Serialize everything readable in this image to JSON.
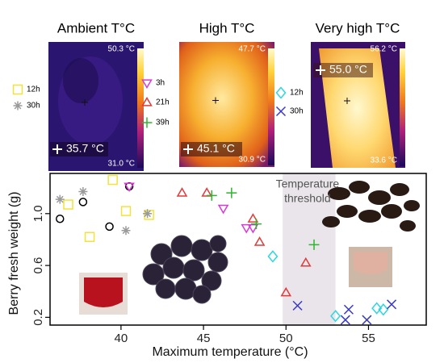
{
  "panels": [
    {
      "title": "Ambient T°C",
      "max": "50.3 °C",
      "min": "31.0 °C",
      "spot": "35.7 °C"
    },
    {
      "title": "High T°C",
      "max": "47.7 °C",
      "min": "30.9 °C",
      "spot": "45.1 °C"
    },
    {
      "title": "Very high T°C",
      "max": "56.2 °C",
      "min": "33.6 °C",
      "spot": "55.0 °C"
    }
  ],
  "chart_data": {
    "type": "scatter",
    "xlabel": "Maximum temperature (°C)",
    "ylabel": "Berry fresh weight (g)",
    "annotation": [
      "Temperature",
      "threshold"
    ],
    "threshold": [
      49.8,
      53
    ],
    "xlim": [
      35.7,
      58.5
    ],
    "ylim": [
      0.14,
      1.31
    ],
    "xticks": [
      40,
      45,
      50,
      55
    ],
    "yticks": [
      0.2,
      0.6,
      {
        "value": 1,
        "label": "1.0"
      }
    ],
    "series": [
      {
        "color": "#000000",
        "marker": "circle",
        "x": [
          36.3,
          37.7,
          39.3,
          40.5
        ],
        "values": [
          0.96,
          1.09,
          0.9,
          1.21
        ]
      },
      {
        "name": "12h",
        "color": "#f2e33a",
        "marker": "square",
        "x": [
          36.8,
          38.1,
          39.5,
          40.3,
          41.7
        ],
        "values": [
          1.07,
          0.82,
          1.26,
          1.02,
          0.99
        ]
      },
      {
        "name": "30h",
        "color": "#9a9a9a",
        "marker": "asterisk",
        "x": [
          36.3,
          37.7,
          40.3,
          41.6
        ],
        "values": [
          1.11,
          1.17,
          0.87,
          1.0
        ]
      },
      {
        "name": "3h",
        "color": "#d63ad6",
        "marker": "triangle-down",
        "x": [
          40.5,
          46.2,
          47.6,
          48.0
        ],
        "values": [
          1.21,
          1.04,
          0.89,
          0.89
        ]
      },
      {
        "name": "21h",
        "color": "#e03a3a",
        "marker": "triangle-up",
        "x": [
          43.7,
          45.2,
          48.0,
          48.4,
          50.0,
          51.2
        ],
        "values": [
          1.16,
          1.16,
          0.96,
          0.78,
          0.39,
          0.62
        ]
      },
      {
        "name": "39h",
        "color": "#2fb52f",
        "marker": "plus",
        "x": [
          45.5,
          46.7,
          48.2,
          51.7
        ],
        "values": [
          1.14,
          1.16,
          0.92,
          0.76
        ]
      },
      {
        "name": "12h",
        "color": "#2ed6e0",
        "marker": "diamond",
        "x": [
          49.2,
          53.0,
          55.5,
          55.9
        ],
        "values": [
          0.67,
          0.21,
          0.27,
          0.26
        ]
      },
      {
        "name": "30h",
        "color": "#3a3ac8",
        "marker": "x",
        "x": [
          50.7,
          53.6,
          53.8,
          54.9,
          56.4
        ],
        "values": [
          0.29,
          0.18,
          0.26,
          0.18,
          0.3
        ]
      }
    ]
  }
}
